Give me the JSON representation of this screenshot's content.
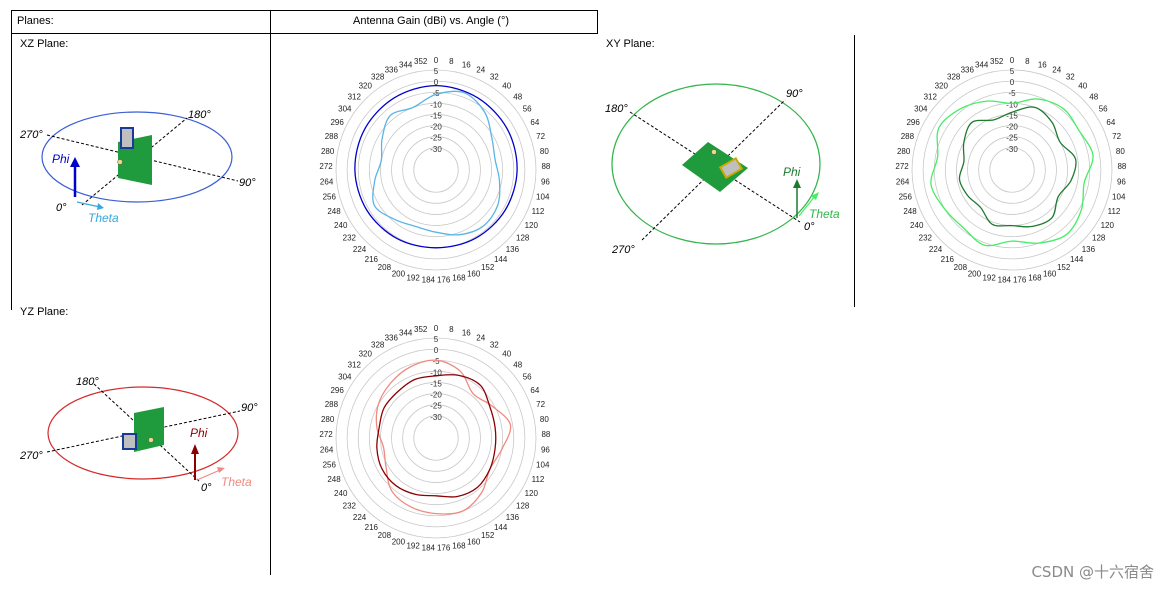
{
  "header": {
    "planes": "Planes:",
    "title": "Antenna Gain (dBi) vs. Angle (°)"
  },
  "planes": {
    "xz": {
      "label": "XZ Plane:",
      "a0": "0°",
      "a90": "90°",
      "a180": "180°",
      "a270": "270°",
      "phi": "Phi",
      "theta": "Theta"
    },
    "yz": {
      "label": "YZ Plane:",
      "a0": "0°",
      "a90": "90°",
      "a180": "180°",
      "a270": "270°",
      "phi": "Phi",
      "theta": "Theta"
    },
    "xy": {
      "label": "XY Plane:",
      "a0": "0°",
      "a90": "90°",
      "a180": "180°",
      "a270": "270°",
      "phi": "Phi",
      "theta": "Theta"
    }
  },
  "watermark": "CSDN @十六宿舍",
  "colors": {
    "xz_axis": "#3a5fd6",
    "xz_phi": "#0000cc",
    "xz_theta": "#34a8e0",
    "yz_axis": "#d42a2a",
    "yz_phi": "#8b0000",
    "yz_theta": "#f08a80",
    "xy_axis": "#33b54a",
    "xy_phi": "#1e7a2e",
    "xy_theta": "#44ee66",
    "pcb": "#1f9a3c"
  },
  "chart_data": [
    {
      "type": "polar",
      "plane": "XZ",
      "angle_ticks": [
        0,
        8,
        16,
        24,
        32,
        40,
        48,
        56,
        64,
        72,
        80,
        88,
        96,
        104,
        112,
        120,
        128,
        136,
        144,
        152,
        160,
        168,
        176,
        184,
        192,
        200,
        208,
        216,
        224,
        232,
        240,
        248,
        256,
        264,
        272,
        280,
        288,
        296,
        304,
        312,
        320,
        328,
        336,
        344,
        352
      ],
      "radial_labels": [
        "5",
        "0",
        "-5",
        "-10",
        "-15",
        "-20",
        "-25",
        "-30"
      ],
      "rlim": [
        -40,
        5
      ],
      "series": [
        {
          "color": "#0000cc",
          "angles": [
            0,
            30,
            60,
            90,
            120,
            150,
            180,
            210,
            240,
            270,
            300,
            330
          ],
          "values": [
            -2,
            -2.5,
            -3,
            -3.5,
            -4,
            -4.5,
            -5,
            -4.5,
            -4,
            -3.5,
            -3,
            -2.5
          ]
        },
        {
          "color": "#5ab4e6",
          "angles": [
            0,
            20,
            40,
            60,
            80,
            100,
            120,
            140,
            160,
            180,
            200,
            220,
            240,
            260,
            280,
            300,
            320,
            340
          ],
          "values": [
            -6,
            -3,
            -6,
            -11,
            -13,
            -11,
            -8,
            -7,
            -9,
            -12,
            -13,
            -11,
            -8,
            -12,
            -15,
            -12,
            -8,
            -10
          ]
        }
      ]
    },
    {
      "type": "polar",
      "plane": "XY",
      "angle_ticks": [
        0,
        8,
        16,
        24,
        32,
        40,
        48,
        56,
        64,
        72,
        80,
        88,
        96,
        104,
        112,
        120,
        128,
        136,
        144,
        152,
        160,
        168,
        176,
        184,
        192,
        200,
        208,
        216,
        224,
        232,
        240,
        248,
        256,
        264,
        272,
        280,
        288,
        296,
        304,
        312,
        320,
        328,
        336,
        344,
        352
      ],
      "radial_labels": [
        "5",
        "0",
        "-5",
        "-10",
        "-15",
        "-20",
        "-25",
        "-30"
      ],
      "rlim": [
        -40,
        5
      ],
      "series": [
        {
          "color": "#44ee66",
          "angles": [
            0,
            20,
            40,
            60,
            80,
            100,
            120,
            140,
            160,
            180,
            200,
            220,
            240,
            260,
            280,
            300,
            320,
            340
          ],
          "values": [
            -10,
            -6,
            -4,
            -5,
            -3,
            -7,
            -4,
            -2,
            -5,
            -8,
            -4,
            -6,
            -5,
            -3,
            -6,
            -2,
            -4,
            -7
          ]
        },
        {
          "color": "#1e7a2e",
          "angles": [
            0,
            20,
            40,
            60,
            80,
            100,
            120,
            140,
            160,
            180,
            200,
            220,
            240,
            260,
            280,
            300,
            320,
            340
          ],
          "values": [
            -14,
            -10,
            -12,
            -15,
            -11,
            -13,
            -16,
            -12,
            -13,
            -15,
            -14,
            -18,
            -17,
            -16,
            -18,
            -15,
            -12,
            -16
          ]
        }
      ]
    },
    {
      "type": "polar",
      "plane": "YZ",
      "angle_ticks": [
        0,
        8,
        16,
        24,
        32,
        40,
        48,
        56,
        64,
        72,
        80,
        88,
        96,
        104,
        112,
        120,
        128,
        136,
        144,
        152,
        160,
        168,
        176,
        184,
        192,
        200,
        208,
        216,
        224,
        232,
        240,
        248,
        256,
        264,
        272,
        280,
        288,
        296,
        304,
        312,
        320,
        328,
        336,
        344,
        352
      ],
      "radial_labels": [
        "5",
        "0",
        "-5",
        "-10",
        "-15",
        "-20",
        "-25",
        "-30"
      ],
      "rlim": [
        -40,
        5
      ],
      "series": [
        {
          "color": "#f08a80",
          "angles": [
            0,
            20,
            40,
            60,
            80,
            100,
            120,
            140,
            160,
            180,
            200,
            220,
            240,
            260,
            280,
            300,
            320,
            340
          ],
          "values": [
            -5,
            -8,
            -14,
            -11,
            -6,
            -10,
            -12,
            -8,
            -5,
            -6,
            -7,
            -9,
            -14,
            -16,
            -13,
            -10,
            -8,
            -6
          ]
        },
        {
          "color": "#8b0000",
          "angles": [
            0,
            20,
            40,
            60,
            80,
            100,
            120,
            140,
            160,
            180,
            200,
            220,
            240,
            260,
            280,
            300,
            320,
            340
          ],
          "values": [
            -12,
            -10,
            -9,
            -12,
            -13,
            -13,
            -12,
            -11,
            -12,
            -14,
            -13,
            -12,
            -12,
            -13,
            -14,
            -13,
            -13,
            -12
          ]
        }
      ]
    }
  ]
}
